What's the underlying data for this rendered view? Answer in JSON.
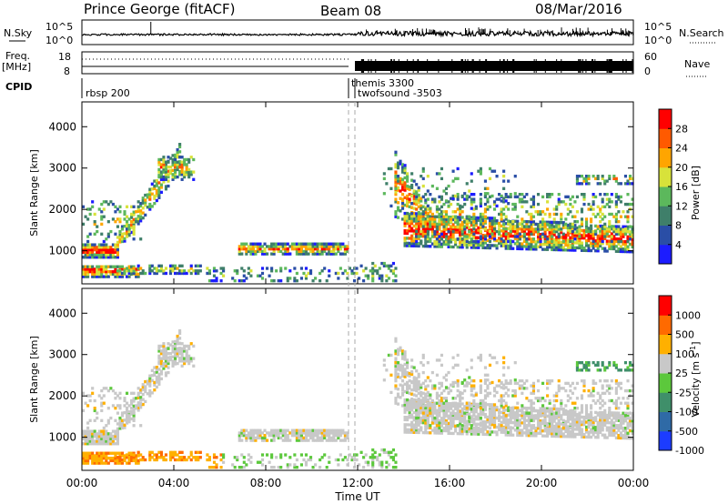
{
  "header": {
    "station": "Prince George (fitACF)",
    "beam": "Beam 08",
    "date": "08/Mar/2016"
  },
  "top_panels": {
    "nsky_label": "N.Sky",
    "nsky_ticks": [
      "10^5",
      "10^0"
    ],
    "nsearch_label": "N.Search",
    "nsearch_ticks": [
      "10^5",
      "10^0"
    ],
    "freq_label": "Freq.",
    "freq_unit": "[MHz]",
    "freq_ticks": [
      "18",
      "8"
    ],
    "nave_label": "Nave",
    "nave_ticks": [
      "60",
      "0"
    ],
    "cpid_label": "CPID",
    "cpid_modes": [
      "rbsp 200",
      "themis 3300",
      "twofsound -3503"
    ]
  },
  "chart_data": [
    {
      "type": "heatmap",
      "ylabel": "Slant Range [km]",
      "yticks": [
        "1000",
        "2000",
        "3000",
        "4000"
      ],
      "ylim": [
        200,
        4600
      ],
      "colorbar_label": "Power [dB]",
      "colorbar_ticks": [
        "4",
        "8",
        "12",
        "16",
        "20",
        "24",
        "28"
      ],
      "colors": [
        "#1c1cff",
        "#2a4ea6",
        "#3f7f6a",
        "#5cb85c",
        "#d8e23a",
        "#ffa500",
        "#ff5a00",
        "#ff0000"
      ]
    },
    {
      "type": "heatmap",
      "ylabel": "Slant Range [km]",
      "yticks": [
        "1000",
        "2000",
        "3000",
        "4000"
      ],
      "ylim": [
        200,
        4600
      ],
      "colorbar_label": "Velocity [m s",
      "colorbar_unit_sup": "-1",
      "colorbar_ticks": [
        "1000",
        "500",
        "100",
        "25",
        "-25",
        "-100",
        "-500",
        "-1000"
      ],
      "colors": [
        "#1c3cff",
        "#2f6aa6",
        "#3f8f6a",
        "#5cc83c",
        "#c8c8c8",
        "#ffb000",
        "#ff6a00",
        "#ff0000"
      ]
    }
  ],
  "x_axis": {
    "ticks": [
      "00:00",
      "04:00",
      "08:00",
      "12:00",
      "16:00",
      "20:00",
      "00:00"
    ],
    "label": "Time UT"
  }
}
